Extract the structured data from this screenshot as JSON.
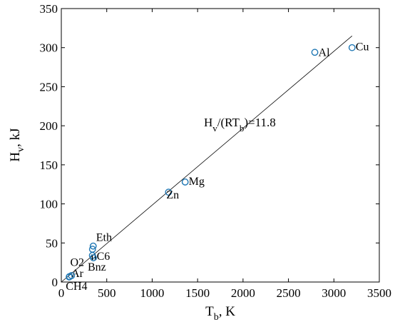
{
  "chart_data": {
    "type": "scatter",
    "title": "",
    "xlabel": {
      "main": "T",
      "sub": "b",
      "rest": ", K"
    },
    "ylabel": {
      "main": "H",
      "sub": "v",
      "rest": ", kJ"
    },
    "xlim": [
      0,
      3500
    ],
    "ylim": [
      0,
      350
    ],
    "xticks": [
      0,
      500,
      1000,
      1500,
      2000,
      2500,
      3000,
      3500
    ],
    "yticks": [
      0,
      50,
      100,
      150,
      200,
      250,
      300,
      350
    ],
    "grid": false,
    "legend": "none",
    "marker_color": "#1f77b4",
    "points": [
      {
        "label": "Cu",
        "x": 3200,
        "y": 300
      },
      {
        "label": "Al",
        "x": 2790,
        "y": 294
      },
      {
        "label": "Mg",
        "x": 1363,
        "y": 128
      },
      {
        "label": "Zn",
        "x": 1180,
        "y": 115
      },
      {
        "label": "Eth",
        "x": 351,
        "y": 46
      },
      {
        "label": "",
        "x": 343,
        "y": 42
      },
      {
        "label": "nC6",
        "x": 342,
        "y": 34
      },
      {
        "label": "Bnz",
        "x": 353,
        "y": 31
      },
      {
        "label": "O2",
        "x": 90,
        "y": 7
      },
      {
        "label": "Ar",
        "x": 87,
        "y": 6.5
      },
      {
        "label": "CH4",
        "x": 112,
        "y": 8.2
      }
    ],
    "fit_line": {
      "x": [
        0,
        3200
      ],
      "y": [
        0,
        315
      ]
    },
    "annotation": {
      "main": "H",
      "sub1": "v",
      "mid": "/(RT",
      "sub2": "b",
      "rest": ")=11.8"
    }
  }
}
